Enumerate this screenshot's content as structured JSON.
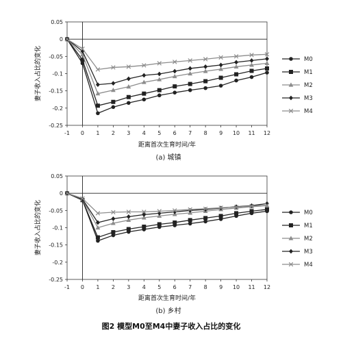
{
  "figure_caption": "图2  模型M0至M4中妻子收入占比的变化",
  "chart_data": [
    {
      "type": "line",
      "subtitle": "(a)  城镇",
      "xlabel": "距离首次生育时间/年",
      "ylabel": "妻子收入占比的变化",
      "x": [
        -1,
        0,
        1,
        2,
        3,
        4,
        5,
        6,
        7,
        8,
        9,
        10,
        11,
        12
      ],
      "xlim": [
        -1,
        12
      ],
      "ylim": [
        -0.25,
        0.05
      ],
      "yticks": [
        0.05,
        0,
        -0.05,
        -0.1,
        -0.15,
        -0.2,
        -0.25
      ],
      "yticklabels": [
        "0.05",
        "0",
        "-0.05",
        "-0.1",
        "-0.15",
        "-0.2",
        "-0.25"
      ],
      "xticklabels": [
        "-1",
        "0",
        "1",
        "2",
        "3",
        "4",
        "5",
        "6",
        "7",
        "8",
        "9",
        "10",
        "11",
        "12"
      ],
      "legend_position": "right",
      "series": [
        {
          "name": "M0",
          "color": "#222222",
          "marker": "circle",
          "values": [
            0,
            -0.07,
            -0.215,
            -0.197,
            -0.185,
            -0.175,
            -0.163,
            -0.155,
            -0.148,
            -0.142,
            -0.135,
            -0.12,
            -0.11,
            -0.097
          ]
        },
        {
          "name": "M1",
          "color": "#222222",
          "marker": "square",
          "values": [
            0,
            -0.06,
            -0.193,
            -0.182,
            -0.168,
            -0.158,
            -0.148,
            -0.137,
            -0.13,
            -0.122,
            -0.112,
            -0.102,
            -0.092,
            -0.085
          ]
        },
        {
          "name": "M2",
          "color": "#8c8c8c",
          "marker": "triangle",
          "values": [
            0,
            -0.045,
            -0.158,
            -0.148,
            -0.138,
            -0.125,
            -0.117,
            -0.108,
            -0.1,
            -0.093,
            -0.087,
            -0.08,
            -0.075,
            -0.07
          ]
        },
        {
          "name": "M3",
          "color": "#222222",
          "marker": "diamond",
          "values": [
            0,
            -0.035,
            -0.132,
            -0.128,
            -0.115,
            -0.105,
            -0.101,
            -0.093,
            -0.085,
            -0.08,
            -0.075,
            -0.067,
            -0.062,
            -0.057
          ]
        },
        {
          "name": "M4",
          "color": "#8c8c8c",
          "marker": "x",
          "values": [
            0,
            -0.028,
            -0.088,
            -0.082,
            -0.08,
            -0.076,
            -0.07,
            -0.066,
            -0.062,
            -0.058,
            -0.053,
            -0.05,
            -0.046,
            -0.044
          ]
        }
      ]
    },
    {
      "type": "line",
      "subtitle": "(b)  乡村",
      "xlabel": "距离首次生育时间/年",
      "ylabel": "妻子收入占比的变化",
      "x": [
        -1,
        0,
        1,
        2,
        3,
        4,
        5,
        6,
        7,
        8,
        9,
        10,
        11,
        12
      ],
      "xlim": [
        -1,
        12
      ],
      "ylim": [
        -0.25,
        0.05
      ],
      "yticks": [
        0.05,
        0,
        -0.05,
        -0.1,
        -0.15,
        -0.2,
        -0.25
      ],
      "yticklabels": [
        "0.05",
        "0",
        "-0.05",
        "-0.1",
        "-0.15",
        "-0.2",
        "-0.25"
      ],
      "xticklabels": [
        "-1",
        "0",
        "1",
        "2",
        "3",
        "4",
        "5",
        "6",
        "7",
        "8",
        "9",
        "10",
        "11",
        "12"
      ],
      "legend_position": "right",
      "series": [
        {
          "name": "M0",
          "color": "#222222",
          "marker": "circle",
          "values": [
            0,
            -0.02,
            -0.138,
            -0.122,
            -0.112,
            -0.105,
            -0.098,
            -0.093,
            -0.088,
            -0.082,
            -0.075,
            -0.066,
            -0.058,
            -0.052
          ]
        },
        {
          "name": "M1",
          "color": "#222222",
          "marker": "square",
          "values": [
            0,
            -0.02,
            -0.128,
            -0.113,
            -0.104,
            -0.097,
            -0.09,
            -0.085,
            -0.078,
            -0.072,
            -0.066,
            -0.058,
            -0.052,
            -0.047
          ]
        },
        {
          "name": "M2",
          "color": "#8c8c8c",
          "marker": "triangle",
          "values": [
            0,
            -0.018,
            -0.1,
            -0.087,
            -0.078,
            -0.071,
            -0.066,
            -0.061,
            -0.057,
            -0.052,
            -0.047,
            -0.043,
            -0.039,
            -0.036
          ]
        },
        {
          "name": "M3",
          "color": "#222222",
          "marker": "diamond",
          "values": [
            0,
            -0.017,
            -0.085,
            -0.074,
            -0.068,
            -0.062,
            -0.058,
            -0.054,
            -0.05,
            -0.047,
            -0.043,
            -0.039,
            -0.036,
            -0.03
          ]
        },
        {
          "name": "M4",
          "color": "#8c8c8c",
          "marker": "x",
          "values": [
            0,
            -0.015,
            -0.058,
            -0.055,
            -0.054,
            -0.054,
            -0.052,
            -0.05,
            -0.047,
            -0.045,
            -0.042,
            -0.04,
            -0.037,
            -0.035
          ]
        }
      ]
    }
  ]
}
